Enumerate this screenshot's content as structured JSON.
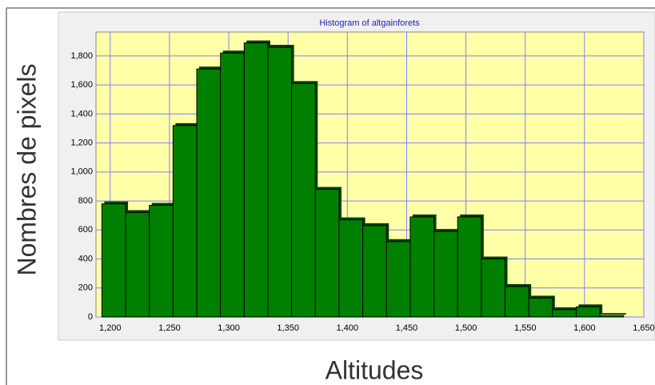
{
  "chart_data": {
    "type": "histogram",
    "title": "Histogram of altgainforets",
    "xlabel": "Altitudes",
    "ylabel": "Nombres de pixels",
    "bins": [
      1193,
      1213,
      1233,
      1253,
      1273,
      1293,
      1313,
      1333,
      1353,
      1373,
      1393,
      1413,
      1433,
      1453,
      1473,
      1493,
      1513,
      1533,
      1553,
      1573,
      1593,
      1613,
      1633
    ],
    "values": [
      780,
      720,
      770,
      1320,
      1710,
      1820,
      1890,
      1860,
      1610,
      880,
      670,
      630,
      520,
      690,
      590,
      690,
      400,
      210,
      130,
      50,
      70,
      10
    ],
    "color": "#008000",
    "xlim": [
      1188,
      1650
    ],
    "xticks": [
      {
        "value": 1200,
        "label": "1,200"
      },
      {
        "value": 1250,
        "label": "1,250"
      },
      {
        "value": 1300,
        "label": "1,300"
      },
      {
        "value": 1350,
        "label": "1,350"
      },
      {
        "value": 1400,
        "label": "1,400"
      },
      {
        "value": 1450,
        "label": "1,450"
      },
      {
        "value": 1500,
        "label": "1,500"
      },
      {
        "value": 1550,
        "label": "1,550"
      },
      {
        "value": 1600,
        "label": "1,600"
      },
      {
        "value": 1650,
        "label": "1,650"
      }
    ],
    "ylim": [
      0,
      1965
    ],
    "yticks": [
      0,
      200,
      400,
      600,
      800,
      {
        "value": 1000,
        "label": "1,000"
      },
      {
        "value": 1200,
        "label": "1,200"
      },
      {
        "value": 1400,
        "label": "1,400"
      },
      {
        "value": 1600,
        "label": "1,600"
      },
      {
        "value": 1800,
        "label": "1,800"
      }
    ],
    "grid": true
  }
}
